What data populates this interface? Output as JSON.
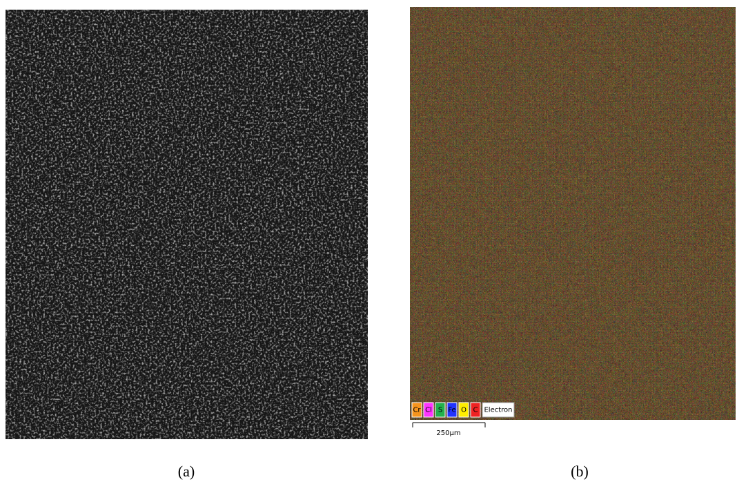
{
  "panels": [
    {
      "caption": "(a)"
    },
    {
      "caption": "(b)",
      "legend": [
        {
          "label": "Cr",
          "color": "#f7941d"
        },
        {
          "label": "Cl",
          "color": "#ff33ff"
        },
        {
          "label": "S",
          "color": "#22b14c"
        },
        {
          "label": "Fe",
          "color": "#2233ff"
        },
        {
          "label": "O",
          "color": "#ffee00"
        },
        {
          "label": "C",
          "color": "#ee2222"
        }
      ],
      "legend_extra": "Electron",
      "scale_bar": "250μm"
    }
  ]
}
